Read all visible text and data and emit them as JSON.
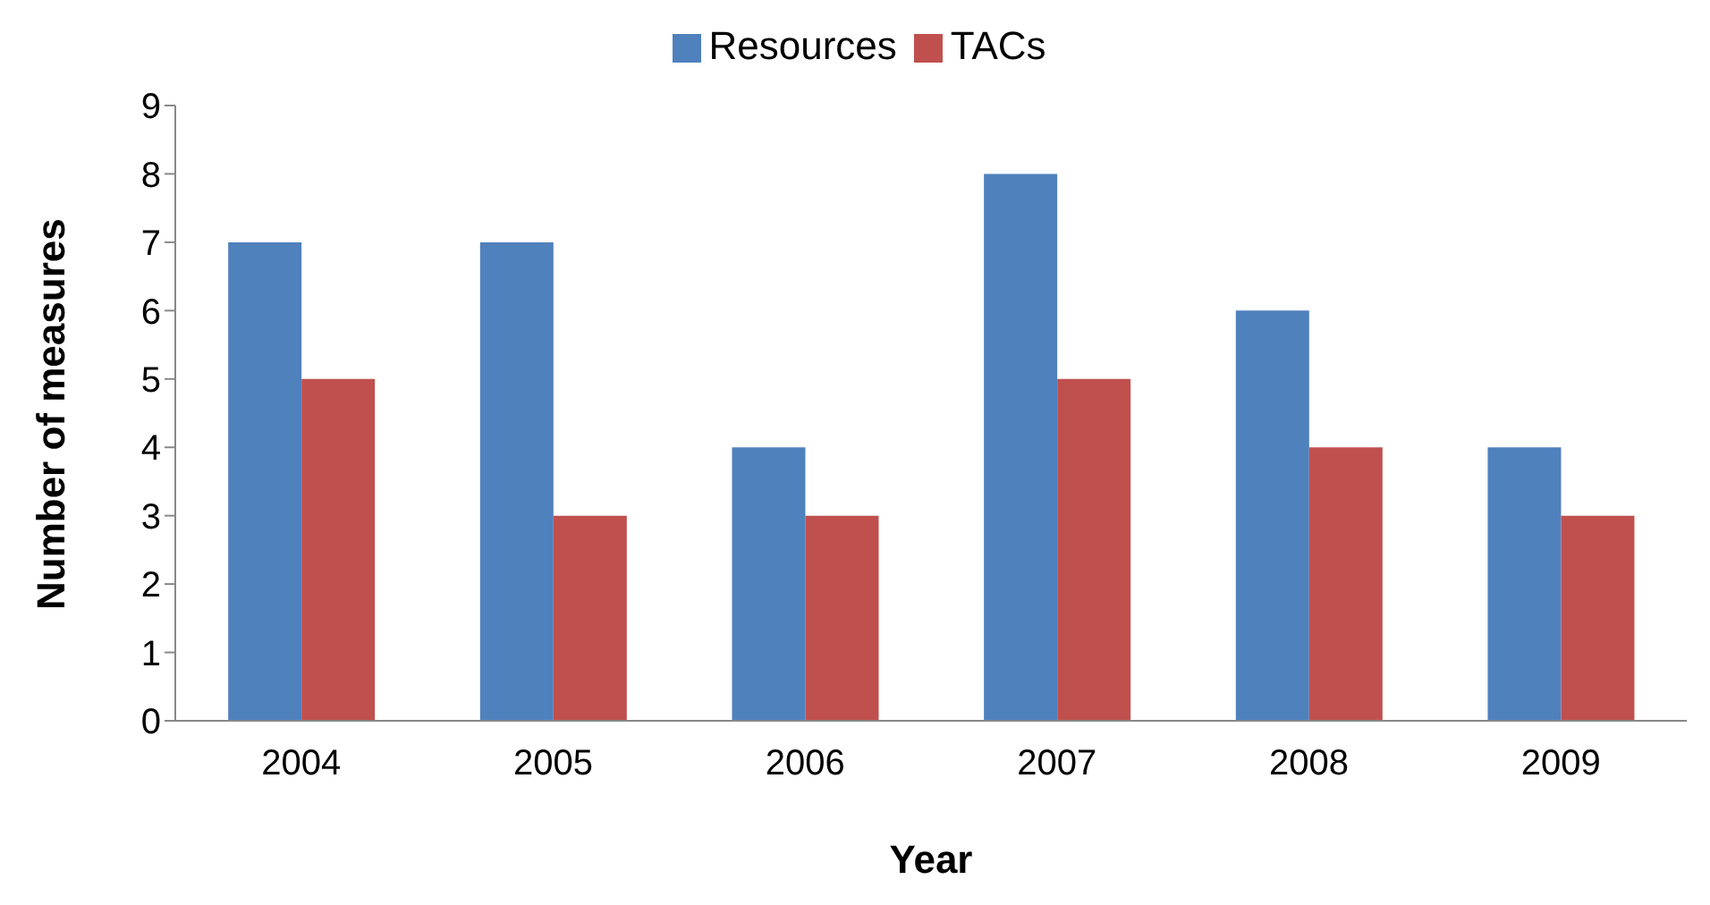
{
  "chart_data": {
    "type": "bar",
    "xlabel": "Year",
    "ylabel": "Number of measures",
    "categories": [
      "2004",
      "2005",
      "2006",
      "2007",
      "2008",
      "2009"
    ],
    "series": [
      {
        "name": "Resources",
        "color": "#4f81bd",
        "values": [
          7,
          7,
          4,
          8,
          6,
          4
        ]
      },
      {
        "name": "TACs",
        "color": "#c0504d",
        "values": [
          5,
          3,
          3,
          5,
          4,
          3
        ]
      }
    ],
    "ylim": [
      0,
      9
    ],
    "yticks": [
      0,
      1,
      2,
      3,
      4,
      5,
      6,
      7,
      8,
      9
    ],
    "legend": "top"
  }
}
